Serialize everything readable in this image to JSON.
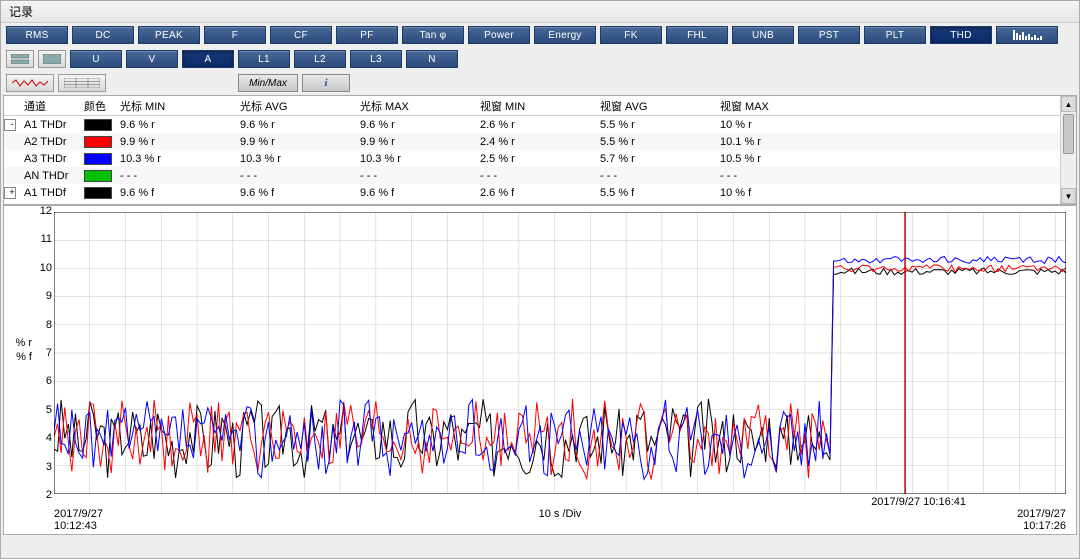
{
  "title": "记录",
  "toolbar1": [
    "RMS",
    "DC",
    "PEAK",
    "F",
    "CF",
    "PF",
    "Tan φ",
    "Power",
    "Energy",
    "FK",
    "FHL",
    "UNB",
    "PST",
    "PLT",
    "THD"
  ],
  "toolbar1_active_index": 14,
  "toolbar2": [
    "U",
    "V",
    "A",
    "L1",
    "L2",
    "L3",
    "N"
  ],
  "toolbar2_active_index": 2,
  "minmax_label": "Min/Max",
  "table": {
    "headers": [
      "通道",
      "颜色",
      "光标 MIN",
      "光标 AVG",
      "光标 MAX",
      "视窗 MIN",
      "视窗 AVG",
      "视窗 MAX"
    ],
    "rows": [
      {
        "expand": "-",
        "name": "A1 THDr",
        "color": "#000000",
        "vals": [
          "9.6 % r",
          "9.6 % r",
          "9.6 % r",
          "2.6 % r",
          "5.5 % r",
          "10 % r"
        ]
      },
      {
        "expand": "",
        "name": "A2 THDr",
        "color": "#ff0000",
        "vals": [
          "9.9 % r",
          "9.9 % r",
          "9.9 % r",
          "2.4 % r",
          "5.5 % r",
          "10.1 % r"
        ]
      },
      {
        "expand": "",
        "name": "A3 THDr",
        "color": "#0000ff",
        "vals": [
          "10.3 % r",
          "10.3 % r",
          "10.3 % r",
          "2.5 % r",
          "5.7 % r",
          "10.5 % r"
        ]
      },
      {
        "expand": "",
        "name": "AN THDr",
        "color": "#00c000",
        "vals": [
          "- - -",
          "- - -",
          "- - -",
          "- - -",
          "- - -",
          "- - -"
        ]
      },
      {
        "expand": "+",
        "name": "A1 THDf",
        "color": "#000000",
        "vals": [
          "9.6 % f",
          "9.6 % f",
          "9.6 % f",
          "2.6 % f",
          "5.5 % f",
          "10 % f"
        ]
      }
    ]
  },
  "chart": {
    "ylabel_lines": [
      "% r",
      "% f"
    ],
    "ylim": [
      2,
      12
    ],
    "ytick_step": 1,
    "xlim": [
      0,
      283
    ],
    "grid_color": "#c8c8c8",
    "plot_bg": "#ffffff",
    "cursor_x": 238,
    "cursor_color": "#c00000",
    "xlabel_left_line1": "2017/9/27",
    "xlabel_left_line2": "10:12:43",
    "xlabel_center": "10 s /Div",
    "xlabel_cursor": "2017/9/27 10:16:41",
    "xlabel_right_line1": "2017/9/27",
    "xlabel_right_line2": "10:17:26",
    "step_x": 218,
    "noise_low_center": 4.0,
    "noise_low_amp": 1.2,
    "series": [
      {
        "color": "#000000",
        "width": 1,
        "high_level": 9.9
      },
      {
        "color": "#ff0000",
        "width": 1,
        "high_level": 10.0
      },
      {
        "color": "#0000ff",
        "width": 1,
        "high_level": 10.3
      }
    ]
  }
}
